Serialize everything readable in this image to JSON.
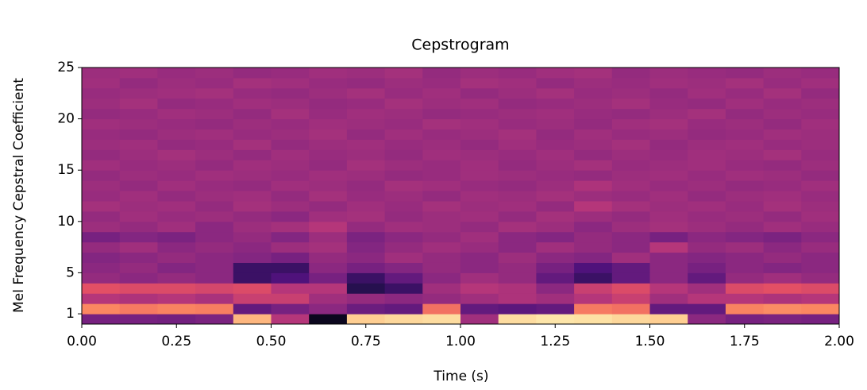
{
  "chart_data": {
    "type": "heatmap",
    "title": "Cepstrogram",
    "x_label": "Time (s)",
    "y_label": "Mel Frequency Cepstral Coefficient",
    "colormap": "magma",
    "x": [
      0,
      0.1,
      0.2,
      0.3,
      0.4,
      0.5,
      0.6,
      0.7,
      0.8,
      0.9,
      1.0,
      1.1,
      1.2,
      1.3,
      1.4,
      1.5,
      1.6,
      1.7,
      1.8,
      1.9
    ],
    "y": [
      0,
      1,
      2,
      3,
      4,
      5,
      6,
      7,
      8,
      9,
      10,
      11,
      12,
      13,
      14,
      15,
      16,
      17,
      18,
      19,
      20,
      21,
      22,
      23,
      24
    ],
    "z": [
      [
        0.35,
        0.35,
        0.34,
        0.36,
        0.85,
        0.5,
        0.05,
        0.9,
        0.92,
        0.93,
        0.45,
        0.93,
        0.95,
        0.94,
        0.92,
        0.9,
        0.4,
        0.35,
        0.36,
        0.35
      ],
      [
        0.75,
        0.72,
        0.74,
        0.73,
        0.3,
        0.35,
        0.4,
        0.32,
        0.3,
        0.7,
        0.3,
        0.28,
        0.3,
        0.72,
        0.7,
        0.3,
        0.3,
        0.74,
        0.76,
        0.75
      ],
      [
        0.5,
        0.48,
        0.5,
        0.47,
        0.55,
        0.55,
        0.45,
        0.42,
        0.4,
        0.42,
        0.45,
        0.48,
        0.45,
        0.5,
        0.55,
        0.45,
        0.5,
        0.5,
        0.48,
        0.5
      ],
      [
        0.62,
        0.6,
        0.6,
        0.58,
        0.6,
        0.5,
        0.5,
        0.15,
        0.2,
        0.45,
        0.5,
        0.48,
        0.4,
        0.55,
        0.6,
        0.5,
        0.45,
        0.6,
        0.62,
        0.6
      ],
      [
        0.42,
        0.4,
        0.42,
        0.4,
        0.2,
        0.25,
        0.35,
        0.2,
        0.3,
        0.4,
        0.45,
        0.42,
        0.3,
        0.2,
        0.3,
        0.4,
        0.3,
        0.42,
        0.45,
        0.42
      ],
      [
        0.4,
        0.42,
        0.38,
        0.4,
        0.2,
        0.2,
        0.4,
        0.35,
        0.38,
        0.42,
        0.4,
        0.42,
        0.35,
        0.25,
        0.3,
        0.4,
        0.35,
        0.4,
        0.38,
        0.4
      ],
      [
        0.38,
        0.4,
        0.42,
        0.4,
        0.38,
        0.35,
        0.42,
        0.4,
        0.45,
        0.42,
        0.4,
        0.44,
        0.4,
        0.38,
        0.45,
        0.4,
        0.38,
        0.4,
        0.42,
        0.4
      ],
      [
        0.42,
        0.45,
        0.4,
        0.42,
        0.4,
        0.44,
        0.46,
        0.38,
        0.42,
        0.45,
        0.43,
        0.4,
        0.45,
        0.42,
        0.4,
        0.5,
        0.42,
        0.44,
        0.4,
        0.43
      ],
      [
        0.35,
        0.38,
        0.36,
        0.4,
        0.42,
        0.38,
        0.44,
        0.36,
        0.4,
        0.42,
        0.45,
        0.4,
        0.38,
        0.42,
        0.4,
        0.35,
        0.4,
        0.38,
        0.36,
        0.4
      ],
      [
        0.44,
        0.42,
        0.45,
        0.4,
        0.44,
        0.46,
        0.5,
        0.42,
        0.45,
        0.44,
        0.42,
        0.46,
        0.44,
        0.4,
        0.44,
        0.46,
        0.44,
        0.42,
        0.45,
        0.43
      ],
      [
        0.42,
        0.45,
        0.43,
        0.44,
        0.42,
        0.4,
        0.45,
        0.46,
        0.42,
        0.44,
        0.45,
        0.42,
        0.46,
        0.44,
        0.42,
        0.45,
        0.43,
        0.44,
        0.42,
        0.45
      ],
      [
        0.46,
        0.44,
        0.45,
        0.42,
        0.46,
        0.44,
        0.42,
        0.45,
        0.43,
        0.46,
        0.44,
        0.45,
        0.42,
        0.5,
        0.46,
        0.44,
        0.45,
        0.43,
        0.46,
        0.44
      ],
      [
        0.43,
        0.45,
        0.42,
        0.44,
        0.45,
        0.42,
        0.46,
        0.43,
        0.44,
        0.42,
        0.45,
        0.44,
        0.46,
        0.44,
        0.43,
        0.45,
        0.42,
        0.44,
        0.45,
        0.43
      ],
      [
        0.44,
        0.42,
        0.45,
        0.43,
        0.42,
        0.45,
        0.44,
        0.42,
        0.46,
        0.45,
        0.43,
        0.42,
        0.44,
        0.48,
        0.45,
        0.43,
        0.44,
        0.42,
        0.43,
        0.45
      ],
      [
        0.42,
        0.44,
        0.43,
        0.45,
        0.44,
        0.43,
        0.45,
        0.44,
        0.42,
        0.43,
        0.45,
        0.44,
        0.43,
        0.42,
        0.44,
        0.45,
        0.43,
        0.45,
        0.44,
        0.42
      ],
      [
        0.45,
        0.43,
        0.44,
        0.42,
        0.45,
        0.44,
        0.42,
        0.46,
        0.44,
        0.43,
        0.45,
        0.42,
        0.44,
        0.46,
        0.43,
        0.44,
        0.45,
        0.43,
        0.42,
        0.44
      ],
      [
        0.42,
        0.44,
        0.46,
        0.44,
        0.42,
        0.45,
        0.43,
        0.44,
        0.42,
        0.45,
        0.44,
        0.43,
        0.45,
        0.42,
        0.44,
        0.43,
        0.45,
        0.44,
        0.46,
        0.43
      ],
      [
        0.44,
        0.45,
        0.42,
        0.43,
        0.46,
        0.42,
        0.44,
        0.45,
        0.43,
        0.44,
        0.42,
        0.45,
        0.43,
        0.44,
        0.46,
        0.42,
        0.44,
        0.45,
        0.43,
        0.44
      ],
      [
        0.43,
        0.42,
        0.44,
        0.45,
        0.43,
        0.44,
        0.46,
        0.42,
        0.45,
        0.43,
        0.44,
        0.46,
        0.42,
        0.45,
        0.43,
        0.44,
        0.42,
        0.43,
        0.45,
        0.44
      ],
      [
        0.45,
        0.44,
        0.43,
        0.42,
        0.44,
        0.43,
        0.45,
        0.44,
        0.43,
        0.46,
        0.45,
        0.43,
        0.44,
        0.42,
        0.45,
        0.46,
        0.43,
        0.44,
        0.42,
        0.45
      ],
      [
        0.42,
        0.43,
        0.45,
        0.44,
        0.42,
        0.46,
        0.43,
        0.45,
        0.44,
        0.42,
        0.43,
        0.44,
        0.45,
        0.43,
        0.42,
        0.44,
        0.46,
        0.42,
        0.44,
        0.43
      ],
      [
        0.44,
        0.46,
        0.42,
        0.43,
        0.45,
        0.44,
        0.42,
        0.43,
        0.46,
        0.44,
        0.45,
        0.42,
        0.43,
        0.44,
        0.46,
        0.43,
        0.42,
        0.45,
        0.43,
        0.44
      ],
      [
        0.43,
        0.44,
        0.45,
        0.46,
        0.43,
        0.42,
        0.44,
        0.46,
        0.43,
        0.45,
        0.42,
        0.44,
        0.46,
        0.43,
        0.44,
        0.42,
        0.45,
        0.43,
        0.46,
        0.42
      ],
      [
        0.45,
        0.42,
        0.44,
        0.43,
        0.46,
        0.45,
        0.43,
        0.42,
        0.44,
        0.43,
        0.46,
        0.45,
        0.42,
        0.44,
        0.43,
        0.45,
        0.44,
        0.46,
        0.43,
        0.45
      ],
      [
        0.44,
        0.45,
        0.43,
        0.44,
        0.42,
        0.43,
        0.45,
        0.44,
        0.46,
        0.42,
        0.44,
        0.43,
        0.45,
        0.46,
        0.42,
        0.44,
        0.43,
        0.42,
        0.44,
        0.43
      ]
    ],
    "xlim": [
      0,
      2
    ],
    "ylim": [
      0,
      25
    ],
    "xticks": [
      {
        "value": 0,
        "label": "0.00"
      },
      {
        "value": 0.25,
        "label": "0.25"
      },
      {
        "value": 0.5,
        "label": "0.50"
      },
      {
        "value": 0.75,
        "label": "0.75"
      },
      {
        "value": 1,
        "label": "1.00"
      },
      {
        "value": 1.25,
        "label": "1.25"
      },
      {
        "value": 1.5,
        "label": "1.50"
      },
      {
        "value": 1.75,
        "label": "1.75"
      },
      {
        "value": 2,
        "label": "2.00"
      }
    ],
    "yticks": [
      1,
      5,
      10,
      15,
      20,
      25
    ]
  }
}
